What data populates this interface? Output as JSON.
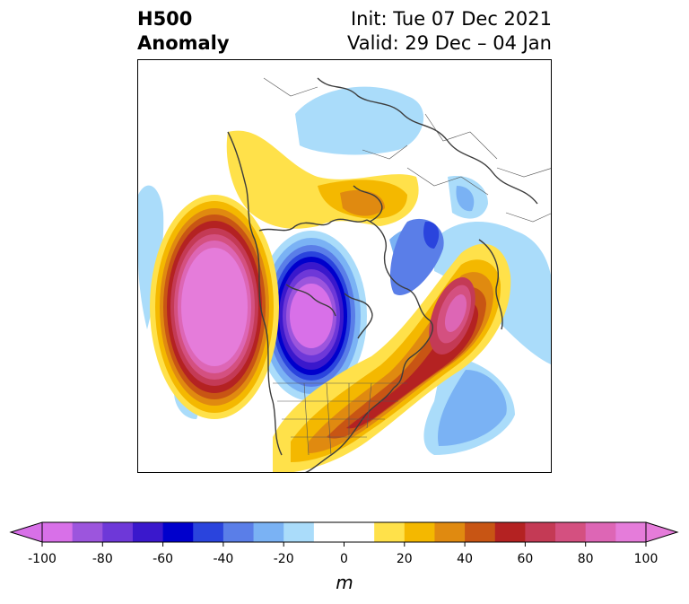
{
  "header": {
    "left_line1": "H500",
    "left_line2": "Anomaly",
    "right_line1": "Init: Tue 07 Dec 2021",
    "right_line2": "Valid: 29 Dec – 04 Jan"
  },
  "colorbar": {
    "unit": "m",
    "ticks": [
      "-100",
      "-80",
      "-60",
      "-40",
      "-20",
      "0",
      "20",
      "40",
      "60",
      "80",
      "100"
    ],
    "colors": [
      "#d870e8",
      "#9c55dd",
      "#6e38d8",
      "#3a18cc",
      "#0000cc",
      "#2a44dd",
      "#5a7ee8",
      "#7ab2f4",
      "#aadcfa",
      "#ffffff",
      "#ffffff",
      "#ffe14a",
      "#f4b800",
      "#e08a10",
      "#c85514",
      "#b42222",
      "#c43a55",
      "#d45080",
      "#dd66b5",
      "#e57cda"
    ],
    "extend_low_color": "#d870e8",
    "extend_high_color": "#e57cda"
  }
}
